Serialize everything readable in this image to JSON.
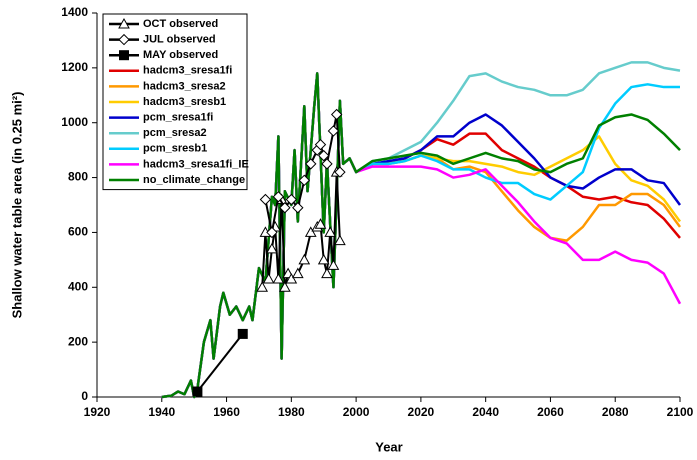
{
  "chart_data": {
    "type": "line",
    "xlabel": "Year",
    "ylabel": "Shallow water table area (in 0.25 mi²)",
    "xlim": [
      1920,
      2100
    ],
    "xticks": [
      1920,
      1940,
      1960,
      1980,
      2000,
      2020,
      2040,
      2060,
      2080,
      2100
    ],
    "ylim": [
      0,
      1400
    ],
    "yticks": [
      0,
      200,
      400,
      600,
      800,
      1000,
      1200,
      1400
    ],
    "grid": false,
    "legend_position": "upper-left",
    "x": [
      1940,
      1943,
      1945,
      1947,
      1949,
      1950,
      1951,
      1953,
      1955,
      1956,
      1958,
      1959,
      1961,
      1963,
      1965,
      1967,
      1968,
      1970,
      1972,
      1974,
      1975,
      1976,
      1977,
      1978,
      1980,
      1981,
      1982,
      1984,
      1985,
      1987,
      1988,
      1990,
      1991,
      1993,
      1995,
      1996,
      1998,
      2000,
      2005,
      2010,
      2015,
      2020,
      2025,
      2030,
      2035,
      2040,
      2045,
      2050,
      2055,
      2060,
      2065,
      2070,
      2075,
      2080,
      2085,
      2090,
      2095,
      2100
    ],
    "series": [
      {
        "name": "OCT observed",
        "color": "#000000",
        "marker": "triangle",
        "x": [
          1971,
          1972,
          1973,
          1974,
          1975,
          1976,
          1977,
          1978,
          1979,
          1980,
          1982,
          1984,
          1986,
          1988,
          1989,
          1990,
          1991,
          1992,
          1993,
          1994,
          1995
        ],
        "values": [
          400,
          600,
          430,
          540,
          620,
          430,
          720,
          400,
          450,
          430,
          450,
          500,
          600,
          620,
          630,
          500,
          450,
          600,
          480,
          820,
          570
        ]
      },
      {
        "name": "JUL observed",
        "color": "#000000",
        "marker": "diamond",
        "x": [
          1972,
          1974,
          1976,
          1978,
          1980,
          1982,
          1984,
          1986,
          1988,
          1989,
          1990,
          1991,
          1993,
          1994,
          1995
        ],
        "values": [
          720,
          600,
          730,
          690,
          720,
          690,
          790,
          850,
          900,
          920,
          880,
          850,
          970,
          1030,
          820
        ]
      },
      {
        "name": "MAY observed",
        "color": "#000000",
        "marker": "square",
        "x": [
          1951,
          1965
        ],
        "values": [
          20,
          230
        ]
      },
      {
        "name": "hadcm3_sresa1fi",
        "color": "#e00000",
        "values": [
          0,
          5,
          20,
          10,
          60,
          0,
          30,
          200,
          280,
          140,
          330,
          380,
          300,
          330,
          280,
          330,
          280,
          470,
          420,
          730,
          700,
          950,
          140,
          750,
          700,
          900,
          640,
          1060,
          750,
          1050,
          1180,
          600,
          860,
          400,
          1080,
          850,
          870,
          820,
          850,
          850,
          870,
          900,
          940,
          920,
          960,
          960,
          900,
          870,
          840,
          800,
          770,
          730,
          720,
          730,
          710,
          700,
          650,
          580
        ]
      },
      {
        "name": "hadcm3_sresa2",
        "color": "#ff9900",
        "values": [
          0,
          5,
          20,
          10,
          60,
          0,
          30,
          200,
          280,
          140,
          330,
          380,
          300,
          330,
          280,
          330,
          280,
          470,
          420,
          730,
          700,
          950,
          140,
          750,
          700,
          900,
          640,
          1060,
          750,
          1050,
          1180,
          600,
          860,
          400,
          1080,
          850,
          870,
          820,
          850,
          850,
          860,
          880,
          870,
          830,
          840,
          820,
          750,
          680,
          620,
          580,
          570,
          620,
          700,
          700,
          740,
          740,
          700,
          620
        ]
      },
      {
        "name": "hadcm3_sresb1",
        "color": "#ffcc00",
        "values": [
          0,
          5,
          20,
          10,
          60,
          0,
          30,
          200,
          280,
          140,
          330,
          380,
          300,
          330,
          280,
          330,
          280,
          470,
          420,
          730,
          700,
          950,
          140,
          750,
          700,
          900,
          640,
          1060,
          750,
          1050,
          1180,
          600,
          860,
          400,
          1080,
          850,
          870,
          820,
          850,
          855,
          860,
          880,
          870,
          860,
          860,
          850,
          840,
          820,
          810,
          840,
          870,
          900,
          950,
          850,
          790,
          770,
          720,
          640
        ]
      },
      {
        "name": "pcm_sresa1fi",
        "color": "#0000cc",
        "values": [
          0,
          5,
          20,
          10,
          60,
          0,
          30,
          200,
          280,
          140,
          330,
          380,
          300,
          330,
          280,
          330,
          280,
          470,
          420,
          730,
          700,
          950,
          140,
          750,
          700,
          900,
          640,
          1060,
          750,
          1050,
          1180,
          600,
          860,
          400,
          1080,
          850,
          870,
          820,
          850,
          860,
          870,
          900,
          950,
          950,
          1000,
          1030,
          990,
          930,
          870,
          800,
          770,
          760,
          800,
          830,
          830,
          790,
          780,
          700
        ]
      },
      {
        "name": "pcm_sresa2",
        "color": "#66cccc",
        "values": [
          0,
          5,
          20,
          10,
          60,
          0,
          30,
          200,
          280,
          140,
          330,
          380,
          300,
          330,
          280,
          330,
          280,
          470,
          420,
          730,
          700,
          950,
          140,
          750,
          700,
          900,
          640,
          1060,
          750,
          1050,
          1180,
          600,
          860,
          400,
          1080,
          850,
          870,
          820,
          860,
          870,
          900,
          930,
          1000,
          1080,
          1170,
          1180,
          1150,
          1130,
          1120,
          1100,
          1100,
          1120,
          1180,
          1200,
          1220,
          1220,
          1200,
          1190
        ]
      },
      {
        "name": "pcm_sresb1",
        "color": "#00ccff",
        "values": [
          0,
          5,
          20,
          10,
          60,
          0,
          30,
          200,
          280,
          140,
          330,
          380,
          300,
          330,
          280,
          330,
          280,
          470,
          420,
          730,
          700,
          950,
          140,
          750,
          700,
          900,
          640,
          1060,
          750,
          1050,
          1180,
          600,
          860,
          400,
          1080,
          850,
          870,
          820,
          850,
          850,
          860,
          880,
          860,
          830,
          830,
          800,
          780,
          780,
          740,
          720,
          770,
          820,
          980,
          1070,
          1130,
          1140,
          1130,
          1130
        ]
      },
      {
        "name": "hadcm3_sresa1fi_IE",
        "color": "#ff00ff",
        "values": [
          0,
          5,
          20,
          10,
          60,
          0,
          30,
          200,
          280,
          140,
          330,
          380,
          300,
          330,
          280,
          330,
          280,
          470,
          420,
          730,
          700,
          950,
          140,
          750,
          700,
          900,
          640,
          1060,
          750,
          1050,
          1180,
          600,
          860,
          400,
          1080,
          850,
          870,
          820,
          840,
          840,
          840,
          840,
          830,
          800,
          810,
          830,
          770,
          710,
          640,
          580,
          560,
          500,
          500,
          530,
          500,
          490,
          450,
          340
        ]
      },
      {
        "name": "no_climate_change",
        "color": "#008000",
        "values": [
          0,
          5,
          20,
          10,
          60,
          0,
          30,
          200,
          280,
          140,
          330,
          380,
          300,
          330,
          280,
          330,
          280,
          470,
          420,
          730,
          700,
          950,
          140,
          750,
          700,
          900,
          640,
          1060,
          750,
          1050,
          1180,
          600,
          860,
          400,
          1080,
          850,
          870,
          820,
          860,
          870,
          880,
          890,
          880,
          850,
          870,
          890,
          870,
          860,
          830,
          820,
          850,
          870,
          990,
          1020,
          1030,
          1010,
          960,
          900
        ]
      }
    ]
  }
}
